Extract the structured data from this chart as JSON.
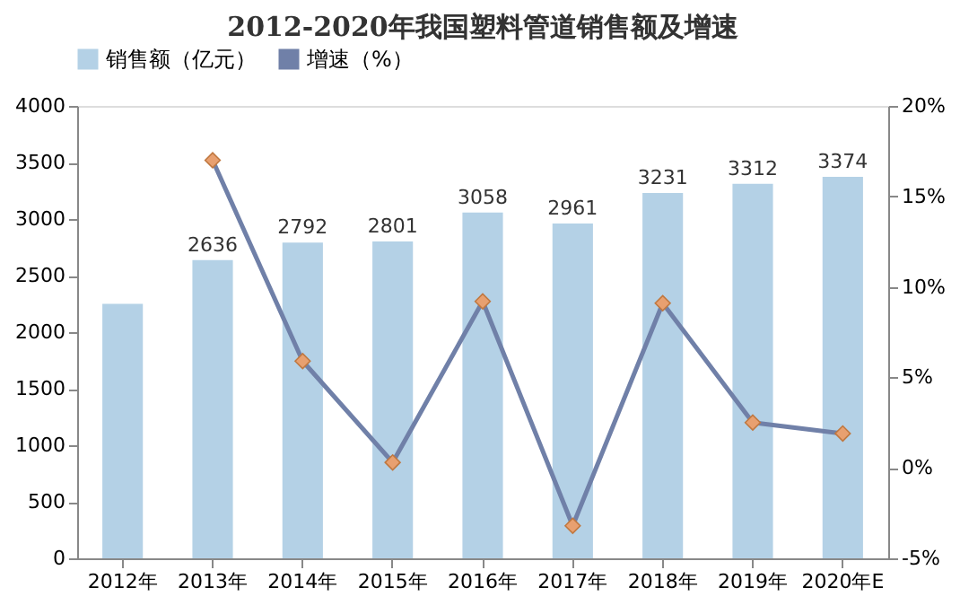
{
  "chart_data": {
    "type": "bar",
    "title": "2012-2020年我国塑料管道销售额及增速",
    "categories": [
      "2012年",
      "2013年",
      "2014年",
      "2015年",
      "2016年",
      "2017年",
      "2018年",
      "2019年",
      "2020年E"
    ],
    "series": [
      {
        "name": "销售额（亿元）",
        "color": "#b4d1e6",
        "values": [
          2250,
          2636,
          2792,
          2801,
          3058,
          2961,
          3231,
          3312,
          3374
        ],
        "value_labels": [
          null,
          "2636",
          "2792",
          "2801",
          "3058",
          "2961",
          "3231",
          "3312",
          "3374"
        ]
      },
      {
        "name": "增速（%）",
        "type": "line",
        "axis": "y2",
        "color": "#7080a8",
        "marker": "diamond",
        "values": [
          null,
          17.0,
          5.9,
          0.3,
          9.2,
          -3.2,
          9.1,
          2.5,
          1.9
        ]
      }
    ],
    "ylim": [
      0,
      4000
    ],
    "yticks": [
      0,
      500,
      1000,
      1500,
      2000,
      2500,
      3000,
      3500,
      4000
    ],
    "y2lim": [
      -5,
      20
    ],
    "y2ticks": [
      {
        "value": -5,
        "label": "-5%"
      },
      {
        "value": 0,
        "label": "0%"
      },
      {
        "value": 5,
        "label": "5%"
      },
      {
        "value": 10,
        "label": "10%"
      },
      {
        "value": 15,
        "label": "15%"
      },
      {
        "value": 20,
        "label": "20%"
      }
    ],
    "legend": "top",
    "grid": false
  }
}
